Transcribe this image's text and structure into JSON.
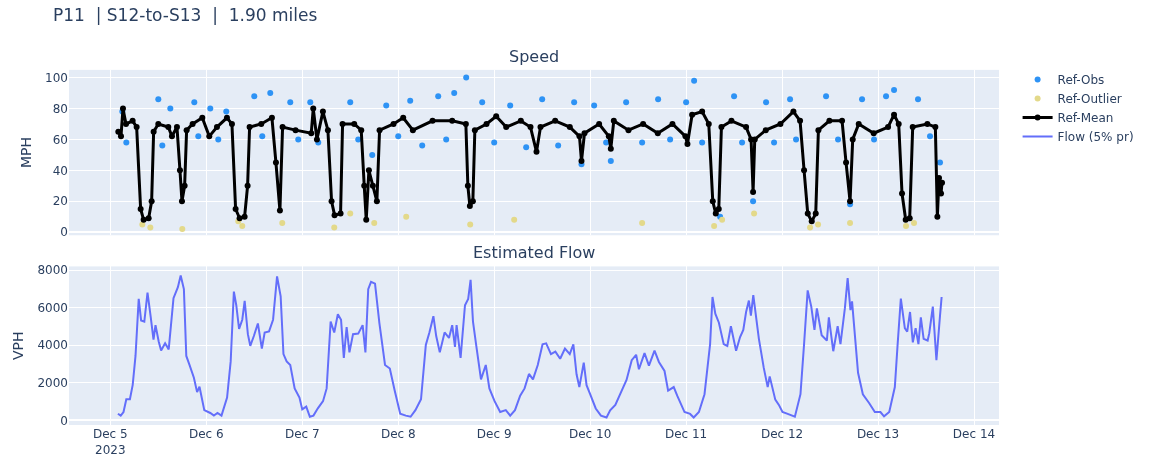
{
  "chart_data": [
    {
      "type": "scatter",
      "title": "P11  | S12-to-S13  |  1.90 miles",
      "subtitle": "Speed",
      "ylabel": "MPH",
      "xlim": [
        "2023-12-04T13:40",
        "2023-12-14T06:15"
      ],
      "ylim": [
        -2,
        105
      ],
      "yticks": [
        0,
        20,
        40,
        60,
        80,
        100
      ],
      "xticks": [
        {
          "value": "2023-12-05",
          "label": null
        },
        {
          "value": "2023-12-06",
          "label": null
        },
        {
          "value": "2023-12-07",
          "label": null
        },
        {
          "value": "2023-12-08",
          "label": null
        },
        {
          "value": "2023-12-09",
          "label": null
        },
        {
          "value": "2023-12-10",
          "label": null
        },
        {
          "value": "2023-12-11",
          "label": null
        },
        {
          "value": "2023-12-12",
          "label": null
        },
        {
          "value": "2023-12-13",
          "label": null
        },
        {
          "value": "2023-12-14",
          "label": null
        }
      ],
      "tick_labels": "y",
      "grid": true,
      "legend": "top right",
      "series": [
        {
          "name": "Ref-Obs",
          "marker": "circle",
          "color": "#2e93f5",
          "x": [
            "2023-12-05T03:00",
            "2023-12-05T04:00",
            "2023-12-05T12:00",
            "2023-12-05T13:00",
            "2023-12-05T15:00",
            "2023-12-05T21:00",
            "2023-12-05T22:00",
            "2023-12-06T01:00",
            "2023-12-06T03:00",
            "2023-12-06T05:00",
            "2023-12-06T12:00",
            "2023-12-06T14:00",
            "2023-12-06T16:00",
            "2023-12-06T21:00",
            "2023-12-06T23:00",
            "2023-12-07T02:00",
            "2023-12-07T04:00",
            "2023-12-07T12:00",
            "2023-12-07T14:00",
            "2023-12-07T17:30",
            "2023-12-07T21:00",
            "2023-12-08T00:00",
            "2023-12-08T03:00",
            "2023-12-08T06:00",
            "2023-12-08T10:00",
            "2023-12-08T12:00",
            "2023-12-08T14:00",
            "2023-12-08T17:00",
            "2023-12-08T21:00",
            "2023-12-09T00:00",
            "2023-12-09T04:00",
            "2023-12-09T08:00",
            "2023-12-09T12:00",
            "2023-12-09T16:00",
            "2023-12-09T20:00",
            "2023-12-09T21:50",
            "2023-12-10T01:00",
            "2023-12-10T04:00",
            "2023-12-10T05:10",
            "2023-12-10T09:00",
            "2023-12-10T13:00",
            "2023-12-10T17:00",
            "2023-12-10T20:00",
            "2023-12-11T00:00",
            "2023-12-11T02:00",
            "2023-12-11T04:00",
            "2023-12-11T08:30",
            "2023-12-11T12:00",
            "2023-12-11T14:00",
            "2023-12-11T16:45",
            "2023-12-11T20:00",
            "2023-12-11T22:00",
            "2023-12-12T02:00",
            "2023-12-12T03:30",
            "2023-12-12T11:00",
            "2023-12-12T14:00",
            "2023-12-12T17:00",
            "2023-12-12T20:00",
            "2023-12-12T23:00",
            "2023-12-13T02:00",
            "2023-12-13T04:00",
            "2023-12-13T10:00",
            "2023-12-13T13:00",
            "2023-12-13T15:30"
          ],
          "values": [
            78,
            58,
            86,
            56,
            80,
            84,
            62,
            80,
            60,
            78,
            88,
            62,
            90,
            84,
            60,
            84,
            58,
            84,
            60,
            50,
            82,
            62,
            85,
            56,
            88,
            60,
            90,
            100,
            84,
            58,
            82,
            55,
            86,
            56,
            84,
            44,
            82,
            58,
            46,
            84,
            58,
            86,
            60,
            84,
            98,
            58,
            10,
            88,
            58,
            20,
            84,
            58,
            86,
            60,
            88,
            60,
            18,
            86,
            60,
            88,
            92,
            86,
            62,
            45
          ]
        },
        {
          "name": "Ref-Outlier",
          "marker": "circle",
          "color": "#e3d98a",
          "x": [
            "2023-12-05T08:00",
            "2023-12-05T10:00",
            "2023-12-05T18:00",
            "2023-12-06T08:00",
            "2023-12-06T09:00",
            "2023-12-06T19:00",
            "2023-12-07T08:00",
            "2023-12-07T12:00",
            "2023-12-07T18:00",
            "2023-12-08T02:00",
            "2023-12-08T18:00",
            "2023-12-09T05:00",
            "2023-12-10T13:00",
            "2023-12-11T07:00",
            "2023-12-11T09:00",
            "2023-12-11T17:00",
            "2023-12-12T07:00",
            "2023-12-12T09:00",
            "2023-12-12T17:00",
            "2023-12-13T07:00",
            "2023-12-13T09:00"
          ],
          "values": [
            5,
            3,
            2,
            7,
            4,
            6,
            3,
            12,
            6,
            10,
            5,
            8,
            6,
            4,
            8,
            12,
            3,
            5,
            6,
            4,
            6
          ]
        },
        {
          "name": "Ref-Mean",
          "type": "line",
          "marker": "circle",
          "line_style": "solid",
          "color": "#000000",
          "x": [
            "2023-12-05T02:00",
            "2023-12-05T02:40",
            "2023-12-05T03:10",
            "2023-12-05T03:55",
            "2023-12-05T05:35",
            "2023-12-05T06:35",
            "2023-12-05T07:35",
            "2023-12-05T08:20",
            "2023-12-05T09:35",
            "2023-12-05T10:20",
            "2023-12-05T10:50",
            "2023-12-05T12:00",
            "2023-12-05T14:30",
            "2023-12-05T15:25",
            "2023-12-05T16:40",
            "2023-12-05T17:25",
            "2023-12-05T17:55",
            "2023-12-05T18:35",
            "2023-12-05T19:05",
            "2023-12-05T20:35",
            "2023-12-05T23:00",
            "2023-12-06T00:45",
            "2023-12-06T02:40",
            "2023-12-06T05:10",
            "2023-12-06T06:25",
            "2023-12-06T07:20",
            "2023-12-06T08:20",
            "2023-12-06T09:35",
            "2023-12-06T10:20",
            "2023-12-06T10:50",
            "2023-12-06T13:45",
            "2023-12-06T16:25",
            "2023-12-06T17:25",
            "2023-12-06T18:25",
            "2023-12-06T19:05",
            "2023-12-06T22:20",
            "2023-12-07T02:15",
            "2023-12-07T02:45",
            "2023-12-07T03:40",
            "2023-12-07T05:10",
            "2023-12-07T06:25",
            "2023-12-07T07:20",
            "2023-12-07T08:05",
            "2023-12-07T09:35",
            "2023-12-07T10:05",
            "2023-12-07T13:00",
            "2023-12-07T14:45",
            "2023-12-07T15:30",
            "2023-12-07T16:00",
            "2023-12-07T16:40",
            "2023-12-07T17:40",
            "2023-12-07T18:40",
            "2023-12-07T19:20",
            "2023-12-07T22:50",
            "2023-12-08T01:15",
            "2023-12-08T03:40",
            "2023-12-08T08:35",
            "2023-12-08T13:30",
            "2023-12-08T16:55",
            "2023-12-08T17:25",
            "2023-12-08T17:55",
            "2023-12-08T18:40",
            "2023-12-08T19:10",
            "2023-12-08T22:05",
            "2023-12-09T00:30",
            "2023-12-09T03:00",
            "2023-12-09T06:40",
            "2023-12-09T09:05",
            "2023-12-09T10:35",
            "2023-12-09T11:35",
            "2023-12-09T15:15",
            "2023-12-09T18:55",
            "2023-12-09T21:20",
            "2023-12-09T21:50",
            "2023-12-09T22:35",
            "2023-12-10T02:15",
            "2023-12-10T04:40",
            "2023-12-10T05:10",
            "2023-12-10T05:55",
            "2023-12-10T09:35",
            "2023-12-10T13:15",
            "2023-12-10T16:55",
            "2023-12-10T20:35",
            "2023-12-10T23:50",
            "2023-12-11T00:20",
            "2023-12-11T01:30",
            "2023-12-11T04:00",
            "2023-12-11T05:40",
            "2023-12-11T06:40",
            "2023-12-11T07:25",
            "2023-12-11T08:10",
            "2023-12-11T08:50",
            "2023-12-11T11:20",
            "2023-12-11T15:00",
            "2023-12-11T16:15",
            "2023-12-11T16:45",
            "2023-12-11T17:10",
            "2023-12-11T19:55",
            "2023-12-11T23:35",
            "2023-12-12T02:50",
            "2023-12-12T04:30",
            "2023-12-12T05:30",
            "2023-12-12T06:25",
            "2023-12-12T07:25",
            "2023-12-12T08:25",
            "2023-12-12T09:05",
            "2023-12-12T11:50",
            "2023-12-12T15:00",
            "2023-12-12T16:00",
            "2023-12-12T17:00",
            "2023-12-12T17:40",
            "2023-12-12T19:10",
            "2023-12-12T22:55",
            "2023-12-13T02:30",
            "2023-12-13T04:00",
            "2023-12-13T05:10",
            "2023-12-13T06:00",
            "2023-12-13T06:55",
            "2023-12-13T07:55",
            "2023-12-13T08:40",
            "2023-12-13T12:20",
            "2023-12-13T14:20",
            "2023-12-13T14:50",
            "2023-12-13T15:15",
            "2023-12-13T15:45",
            "2023-12-13T16:00"
          ],
          "values": [
            65,
            62,
            80,
            70,
            72,
            68,
            15,
            8,
            9,
            20,
            65,
            70,
            68,
            62,
            68,
            40,
            20,
            30,
            66,
            70,
            74,
            62,
            68,
            74,
            70,
            15,
            9,
            10,
            30,
            68,
            70,
            74,
            45,
            14,
            68,
            66,
            64,
            80,
            60,
            78,
            66,
            20,
            11,
            12,
            70,
            70,
            66,
            30,
            8,
            40,
            30,
            20,
            66,
            70,
            74,
            66,
            72,
            72,
            70,
            30,
            17,
            20,
            66,
            70,
            75,
            68,
            72,
            68,
            52,
            68,
            72,
            68,
            62,
            46,
            64,
            70,
            62,
            54,
            72,
            66,
            70,
            64,
            70,
            62,
            57,
            76,
            78,
            70,
            20,
            12,
            15,
            68,
            72,
            68,
            60,
            26,
            60,
            66,
            70,
            78,
            72,
            40,
            12,
            7,
            12,
            66,
            72,
            72,
            45,
            20,
            60,
            70,
            64,
            68,
            76,
            70,
            25,
            8,
            9,
            68,
            70,
            68,
            10,
            35,
            25,
            32
          ]
        }
      ]
    },
    {
      "type": "line",
      "title": "Estimated Flow",
      "ylabel": "VPH",
      "xlim": [
        "2023-12-04T13:40",
        "2023-12-14T06:15"
      ],
      "ylim": [
        -250,
        8200
      ],
      "yticks": [
        0,
        2000,
        4000,
        6000,
        8000
      ],
      "xticks": [
        {
          "value": "2023-12-05",
          "label": "Dec 5\n2023"
        },
        {
          "value": "2023-12-06",
          "label": "Dec 6"
        },
        {
          "value": "2023-12-07",
          "label": "Dec 7"
        },
        {
          "value": "2023-12-08",
          "label": "Dec 8"
        },
        {
          "value": "2023-12-09",
          "label": "Dec 9"
        },
        {
          "value": "2023-12-10",
          "label": "Dec 10"
        },
        {
          "value": "2023-12-11",
          "label": "Dec 11"
        },
        {
          "value": "2023-12-12",
          "label": "Dec 12"
        },
        {
          "value": "2023-12-13",
          "label": "Dec 13"
        },
        {
          "value": "2023-12-14",
          "label": "Dec 14"
        }
      ],
      "grid": true,
      "legend": "top right",
      "series": [
        {
          "name": "Flow (5% pr)",
          "marker": "none",
          "line_style": "solid",
          "color": "#636efa",
          "x": [
            "2023-12-05T01:54",
            "2023-12-05T02:36",
            "2023-12-05T03:18",
            "2023-12-05T04:00",
            "2023-12-05T04:54",
            "2023-12-05T05:36",
            "2023-12-05T06:18",
            "2023-12-05T07:06",
            "2023-12-05T07:42",
            "2023-12-05T08:30",
            "2023-12-05T09:18",
            "2023-12-05T10:06",
            "2023-12-05T10:48",
            "2023-12-05T11:18",
            "2023-12-05T12:06",
            "2023-12-05T12:42",
            "2023-12-05T13:42",
            "2023-12-05T14:36",
            "2023-12-05T15:48",
            "2023-12-05T16:54",
            "2023-12-05T17:36",
            "2023-12-05T18:24",
            "2023-12-05T19:00",
            "2023-12-05T19:48",
            "2023-12-05T20:54",
            "2023-12-05T21:42",
            "2023-12-05T22:18",
            "2023-12-05T23:30",
            "2023-12-06T01:00",
            "2023-12-06T01:54",
            "2023-12-06T02:48",
            "2023-12-06T03:48",
            "2023-12-06T05:12",
            "2023-12-06T06:06",
            "2023-12-06T06:54",
            "2023-12-06T07:30",
            "2023-12-06T08:12",
            "2023-12-06T09:00",
            "2023-12-06T09:36",
            "2023-12-06T10:24",
            "2023-12-06T11:00",
            "2023-12-06T11:54",
            "2023-12-06T12:54",
            "2023-12-06T13:54",
            "2023-12-06T14:36",
            "2023-12-06T15:42",
            "2023-12-06T16:42",
            "2023-12-06T17:42",
            "2023-12-06T18:36",
            "2023-12-06T19:18",
            "2023-12-06T20:06",
            "2023-12-06T21:00",
            "2023-12-06T22:06",
            "2023-12-06T23:18",
            "2023-12-07T00:00",
            "2023-12-07T01:00",
            "2023-12-07T01:54",
            "2023-12-07T02:48",
            "2023-12-07T03:54",
            "2023-12-07T05:12",
            "2023-12-07T06:06",
            "2023-12-07T07:06",
            "2023-12-07T08:00",
            "2023-12-07T08:54",
            "2023-12-07T09:42",
            "2023-12-07T10:24",
            "2023-12-07T11:06",
            "2023-12-07T11:48",
            "2023-12-07T12:42",
            "2023-12-07T14:00",
            "2023-12-07T15:06",
            "2023-12-07T15:48",
            "2023-12-07T16:30",
            "2023-12-07T17:12",
            "2023-12-07T18:12",
            "2023-12-07T19:18",
            "2023-12-07T20:42",
            "2023-12-07T21:54",
            "2023-12-07T23:06",
            "2023-12-08T00:30",
            "2023-12-08T01:54",
            "2023-12-08T03:06",
            "2023-12-08T04:18",
            "2023-12-08T05:42",
            "2023-12-08T06:54",
            "2023-12-08T07:48",
            "2023-12-08T08:48",
            "2023-12-08T09:30",
            "2023-12-08T10:24",
            "2023-12-08T11:36",
            "2023-12-08T12:42",
            "2023-12-08T13:30",
            "2023-12-08T14:12",
            "2023-12-08T14:36",
            "2023-12-08T15:36",
            "2023-12-08T16:42",
            "2023-12-08T17:30",
            "2023-12-08T18:06",
            "2023-12-08T18:42",
            "2023-12-08T19:30",
            "2023-12-08T20:42",
            "2023-12-08T21:54",
            "2023-12-08T22:48",
            "2023-12-09T00:06",
            "2023-12-09T01:30",
            "2023-12-09T02:54",
            "2023-12-09T04:00",
            "2023-12-09T05:12",
            "2023-12-09T06:30",
            "2023-12-09T07:36",
            "2023-12-09T08:42",
            "2023-12-09T09:42",
            "2023-12-09T10:54",
            "2023-12-09T12:06",
            "2023-12-09T13:00",
            "2023-12-09T14:12",
            "2023-12-09T15:18",
            "2023-12-09T16:30",
            "2023-12-09T17:42",
            "2023-12-09T18:54",
            "2023-12-09T19:48",
            "2023-12-09T20:36",
            "2023-12-09T21:18",
            "2023-12-09T22:24",
            "2023-12-09T23:06",
            "2023-12-10T00:00",
            "2023-12-10T01:24",
            "2023-12-10T02:42",
            "2023-12-10T04:06",
            "2023-12-10T05:00",
            "2023-12-10T06:18",
            "2023-12-10T07:42",
            "2023-12-10T09:06",
            "2023-12-10T10:24",
            "2023-12-10T11:30",
            "2023-12-10T12:12",
            "2023-12-10T13:36",
            "2023-12-10T14:42",
            "2023-12-10T16:06",
            "2023-12-10T17:12",
            "2023-12-10T18:36",
            "2023-12-10T19:30",
            "2023-12-10T20:54",
            "2023-12-10T21:48",
            "2023-12-10T23:36",
            "2023-12-11T01:00",
            "2023-12-11T01:54",
            "2023-12-11T03:12",
            "2023-12-11T04:36",
            "2023-12-11T06:00",
            "2023-12-11T06:36",
            "2023-12-11T07:18",
            "2023-12-11T08:12",
            "2023-12-11T09:24",
            "2023-12-11T10:18",
            "2023-12-11T11:12",
            "2023-12-11T12:30",
            "2023-12-11T13:30",
            "2023-12-11T14:18",
            "2023-12-11T15:00",
            "2023-12-11T15:42",
            "2023-12-11T16:12",
            "2023-12-11T16:48",
            "2023-12-11T18:12",
            "2023-12-11T19:24",
            "2023-12-11T20:24",
            "2023-12-11T20:54",
            "2023-12-11T22:18",
            "2023-12-11T23:12",
            "2023-12-12T00:06",
            "2023-12-12T01:24",
            "2023-12-12T03:12",
            "2023-12-12T04:36",
            "2023-12-12T05:30",
            "2023-12-12T06:24",
            "2023-12-12T07:18",
            "2023-12-12T08:06",
            "2023-12-12T08:42",
            "2023-12-12T09:54",
            "2023-12-12T11:12",
            "2023-12-12T11:42",
            "2023-12-12T12:48",
            "2023-12-12T13:54",
            "2023-12-12T14:36",
            "2023-12-12T15:42",
            "2023-12-12T16:24",
            "2023-12-12T17:06",
            "2023-12-12T17:30",
            "2023-12-12T19:00",
            "2023-12-12T20:12",
            "2023-12-12T21:48",
            "2023-12-12T23:12",
            "2023-12-13T00:36",
            "2023-12-13T01:30",
            "2023-12-13T02:48",
            "2023-12-13T04:12",
            "2023-12-13T04:54",
            "2023-12-13T05:42",
            "2023-12-13T06:42",
            "2023-12-13T07:18",
            "2023-12-13T08:00",
            "2023-12-13T08:42",
            "2023-12-13T09:24",
            "2023-12-13T10:06",
            "2023-12-13T10:42",
            "2023-12-13T11:24",
            "2023-12-13T12:24",
            "2023-12-13T12:48",
            "2023-12-13T13:42",
            "2023-12-13T14:36",
            "2023-12-13T15:30",
            "2023-12-13T15:54"
          ],
          "values": [
            350,
            250,
            440,
            1120,
            1120,
            1890,
            3430,
            6470,
            5320,
            5260,
            6800,
            5510,
            4300,
            5070,
            4200,
            3720,
            4100,
            3780,
            6510,
            7090,
            7710,
            6990,
            3430,
            2950,
            2270,
            1500,
            1790,
            540,
            390,
            250,
            390,
            250,
            1210,
            3140,
            6860,
            6130,
            4870,
            5360,
            6360,
            4590,
            3970,
            4490,
            5160,
            3820,
            4680,
            4740,
            5360,
            7670,
            6610,
            3530,
            3140,
            2950,
            1700,
            1210,
            580,
            730,
            190,
            250,
            640,
            1020,
            1700,
            5260,
            4680,
            5650,
            5360,
            3330,
            4970,
            3620,
            4590,
            4620,
            5070,
            3620,
            6990,
            7380,
            7280,
            5160,
            2950,
            2760,
            1600,
            350,
            250,
            190,
            540,
            1120,
            4010,
            4680,
            5550,
            4490,
            3620,
            4680,
            4390,
            5070,
            3910,
            5070,
            3330,
            6130,
            6470,
            7480,
            5260,
            4010,
            2180,
            2950,
            1700,
            1020,
            440,
            540,
            250,
            540,
            1310,
            1700,
            2470,
            2180,
            2950,
            4050,
            4100,
            3530,
            3660,
            3280,
            3820,
            3530,
            4050,
            2450,
            1770,
            3070,
            1870,
            1390,
            630,
            250,
            150,
            530,
            820,
            1490,
            2150,
            3200,
            3490,
            2720,
            3580,
            2910,
            3710,
            3110,
            2630,
            1580,
            1770,
            1300,
            440,
            340,
            150,
            440,
            1390,
            4060,
            6570,
            5680,
            5200,
            4060,
            3960,
            5010,
            3710,
            4440,
            4820,
            5770,
            6380,
            5580,
            6670,
            4340,
            2820,
            1770,
            2340,
            1100,
            820,
            440,
            340,
            190,
            1390,
            4060,
            6920,
            6060,
            4820,
            5960,
            4530,
            4250,
            5490,
            3680,
            5010,
            4060,
            5960,
            7580,
            5870,
            6340,
            2530,
            1390,
            910,
            440,
            440,
            210,
            440,
            1770,
            4060,
            6480,
            4910,
            4720,
            5770,
            4150,
            4910,
            4060,
            5490,
            4340,
            4250,
            4630,
            6060,
            3200,
            5580,
            6570
          ]
        }
      ]
    }
  ]
}
